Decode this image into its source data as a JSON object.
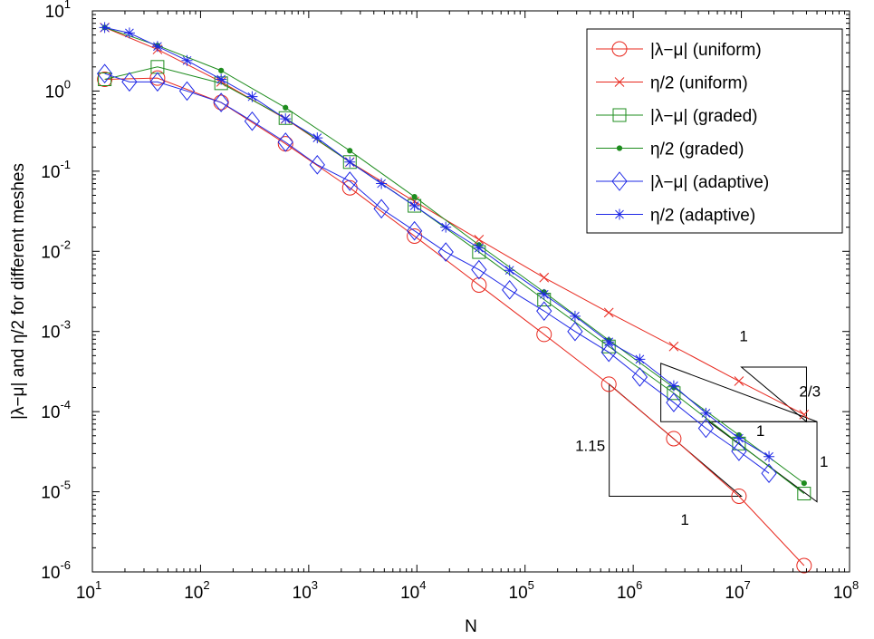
{
  "chart_data": {
    "type": "line",
    "xscale": "log",
    "yscale": "log",
    "xlim": [
      10,
      100000000
    ],
    "ylim": [
      1e-06,
      10
    ],
    "grid": false,
    "legend_position": "top-right",
    "xlabel": "N",
    "ylabel": "|λ−μ| and η/2 for different meshes",
    "x_ticks": [
      {
        "base": "10",
        "exp": "1",
        "value": 10
      },
      {
        "base": "10",
        "exp": "2",
        "value": 100
      },
      {
        "base": "10",
        "exp": "3",
        "value": 1000
      },
      {
        "base": "10",
        "exp": "4",
        "value": 10000
      },
      {
        "base": "10",
        "exp": "5",
        "value": 100000
      },
      {
        "base": "10",
        "exp": "6",
        "value": 1000000
      },
      {
        "base": "10",
        "exp": "7",
        "value": 10000000
      },
      {
        "base": "10",
        "exp": "8",
        "value": 100000000
      }
    ],
    "y_ticks": [
      {
        "base": "10",
        "exp": "1",
        "value": 10
      },
      {
        "base": "10",
        "exp": "0",
        "value": 1
      },
      {
        "base": "10",
        "exp": "-1",
        "value": 0.1
      },
      {
        "base": "10",
        "exp": "-2",
        "value": 0.01
      },
      {
        "base": "10",
        "exp": "-3",
        "value": 0.001
      },
      {
        "base": "10",
        "exp": "-4",
        "value": 0.0001
      },
      {
        "base": "10",
        "exp": "-5",
        "value": 1e-05
      },
      {
        "base": "10",
        "exp": "-6",
        "value": 1e-06
      }
    ],
    "series": [
      {
        "name": "|λ−μ| (uniform)",
        "color": "#e8281e",
        "marker": "circle",
        "x": [
          13,
          40,
          155,
          610,
          2400,
          9500,
          37500,
          150000,
          595000,
          2370000,
          9500000,
          38000000
        ],
        "y": [
          1.4,
          1.45,
          0.72,
          0.22,
          0.062,
          0.0155,
          0.0038,
          0.00092,
          0.00022,
          4.6e-05,
          8.8e-06,
          1.2e-06
        ]
      },
      {
        "name": "η/2 (uniform)",
        "color": "#e8281e",
        "marker": "x",
        "x": [
          13,
          40,
          155,
          610,
          2400,
          9500,
          37500,
          150000,
          595000,
          2370000,
          9500000,
          38000000
        ],
        "y": [
          6.2,
          3.3,
          1.3,
          0.45,
          0.13,
          0.042,
          0.014,
          0.0047,
          0.00172,
          0.00065,
          0.00024,
          9.2e-05
        ]
      },
      {
        "name": "|λ−μ| (graded)",
        "color": "#1e8c1e",
        "marker": "square",
        "x": [
          13,
          40,
          155,
          610,
          2400,
          9500,
          37500,
          150000,
          595000,
          2370000,
          9500000,
          38000000
        ],
        "y": [
          1.4,
          2.0,
          1.25,
          0.46,
          0.13,
          0.037,
          0.0098,
          0.0025,
          0.00065,
          0.00017,
          4e-05,
          9.5e-06
        ]
      },
      {
        "name": "η/2 (graded)",
        "color": "#1e8c1e",
        "marker": "dot",
        "x": [
          13,
          40,
          155,
          610,
          2400,
          9500,
          37500,
          150000,
          595000,
          2370000,
          9500000,
          38000000
        ],
        "y": [
          6.2,
          3.7,
          1.8,
          0.62,
          0.18,
          0.048,
          0.012,
          0.0031,
          0.00078,
          0.0002,
          5.1e-05,
          1.28e-05
        ]
      },
      {
        "name": "|λ−μ| (adaptive)",
        "color": "#1e28e6",
        "marker": "diamond",
        "x": [
          13,
          22,
          40,
          75,
          155,
          300,
          610,
          1200,
          2400,
          4700,
          9500,
          18500,
          37500,
          72000,
          150000,
          290000,
          595000,
          1150000,
          2370000,
          4700000,
          9500000,
          18000000
        ],
        "y": [
          1.65,
          1.3,
          1.3,
          1.0,
          0.72,
          0.42,
          0.23,
          0.12,
          0.075,
          0.034,
          0.018,
          0.0098,
          0.0059,
          0.0033,
          0.0018,
          0.001,
          0.00055,
          0.00027,
          0.00013,
          6.2e-05,
          3.2e-05,
          1.7e-05
        ]
      },
      {
        "name": "η/2 (adaptive)",
        "color": "#1e28e6",
        "marker": "asterisk",
        "x": [
          13,
          22,
          40,
          75,
          155,
          300,
          610,
          1200,
          2400,
          4700,
          9500,
          18500,
          37500,
          72000,
          150000,
          290000,
          595000,
          1150000,
          2370000,
          4700000,
          9500000,
          18000000
        ],
        "y": [
          6.2,
          5.3,
          3.6,
          2.4,
          1.4,
          0.85,
          0.45,
          0.26,
          0.13,
          0.07,
          0.037,
          0.02,
          0.011,
          0.0058,
          0.0029,
          0.00155,
          0.00074,
          0.00045,
          0.00021,
          9.55e-05,
          4.65e-05,
          2.75e-05
        ]
      }
    ],
    "slope_triangles": [
      {
        "vertices": [
          [
            600000,
            0.00022
          ],
          [
            600000,
            8.8e-06
          ],
          [
            10000000,
            8.8e-06
          ]
        ],
        "labels": [
          {
            "text": "1.15",
            "x": 400000,
            "y": 3.8e-05
          },
          {
            "text": "1",
            "x": 3000000,
            "y": 4.5e-06
          }
        ]
      },
      {
        "vertices": [
          [
            10000000,
            0.00036
          ],
          [
            40000000,
            7.5e-05
          ],
          [
            40000000,
            0.00036
          ]
        ],
        "labels": []
      },
      {
        "vertices": [
          [
            1800000,
            0.0004
          ],
          [
            50000000,
            7.5e-05
          ],
          [
            1800000,
            7.5e-05
          ]
        ],
        "labels": [
          {
            "text": "1",
            "x": 10500000,
            "y": 0.00088
          },
          {
            "text": "2/3",
            "x": 43000000,
            "y": 0.00018
          }
        ]
      },
      {
        "vertices": [
          [
            5000000,
            7.5e-05
          ],
          [
            50000000,
            7.5e-06
          ],
          [
            50000000,
            7.5e-05
          ]
        ],
        "labels": [
          {
            "text": "1",
            "x": 15000000,
            "y": 5.8e-05
          },
          {
            "text": "1",
            "x": 58000000,
            "y": 2.4e-05
          }
        ]
      }
    ]
  }
}
